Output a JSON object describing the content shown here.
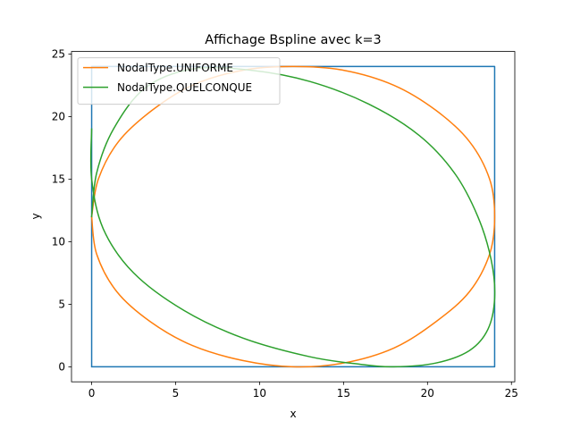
{
  "chart_data": {
    "type": "line",
    "title": "Affichage Bspline avec k=3",
    "xlabel": "x",
    "ylabel": "y",
    "xlim": [
      -1.2,
      25.2
    ],
    "ylim": [
      -1.2,
      25.2
    ],
    "xticks": [
      0,
      5,
      10,
      15,
      20,
      25
    ],
    "yticks": [
      0,
      5,
      10,
      15,
      20,
      25
    ],
    "xtick_labels": [
      "0",
      "5",
      "10",
      "15",
      "20",
      "25"
    ],
    "ytick_labels": [
      "0",
      "5",
      "10",
      "15",
      "20",
      "25"
    ],
    "grid": false,
    "legend_position": "upper-left",
    "series": [
      {
        "name": "",
        "color": "#1f77b4",
        "in_legend": false,
        "points": [
          [
            0,
            0
          ],
          [
            24,
            0
          ],
          [
            24,
            24
          ],
          [
            0,
            24
          ],
          [
            0,
            0
          ]
        ]
      },
      {
        "name": "NodalType.UNIFORME",
        "color": "#ff7f0e",
        "in_legend": true,
        "points": [
          [
            0.0,
            12.0
          ],
          [
            0.3,
            9.0
          ],
          [
            1.5,
            6.0
          ],
          [
            3.5,
            3.6
          ],
          [
            6.0,
            1.7
          ],
          [
            9.0,
            0.5
          ],
          [
            12.0,
            0.0
          ],
          [
            15.0,
            0.3
          ],
          [
            18.0,
            1.5
          ],
          [
            20.5,
            3.6
          ],
          [
            22.5,
            6.0
          ],
          [
            23.7,
            9.0
          ],
          [
            24.0,
            12.0
          ],
          [
            23.7,
            15.0
          ],
          [
            22.5,
            18.0
          ],
          [
            20.5,
            20.5
          ],
          [
            18.0,
            22.5
          ],
          [
            15.0,
            23.7
          ],
          [
            12.0,
            24.0
          ],
          [
            9.0,
            23.7
          ],
          [
            6.0,
            22.5
          ],
          [
            3.6,
            20.5
          ],
          [
            1.6,
            18.0
          ],
          [
            0.4,
            15.0
          ],
          [
            0.0,
            12.0
          ]
        ]
      },
      {
        "name": "NodalType.QUELCONQUE",
        "color": "#2ca02c",
        "in_legend": true,
        "points": [
          [
            0.0,
            19.0
          ],
          [
            0.0,
            15.0
          ],
          [
            0.7,
            11.0
          ],
          [
            2.5,
            7.5
          ],
          [
            5.5,
            4.5
          ],
          [
            9.0,
            2.3
          ],
          [
            13.0,
            0.8
          ],
          [
            16.0,
            0.2
          ],
          [
            18.0,
            0.0
          ],
          [
            20.5,
            0.3
          ],
          [
            22.5,
            1.3
          ],
          [
            23.6,
            3.0
          ],
          [
            24.0,
            5.5
          ],
          [
            23.8,
            8.5
          ],
          [
            23.0,
            12.0
          ],
          [
            21.6,
            15.5
          ],
          [
            19.5,
            18.5
          ],
          [
            16.5,
            21.0
          ],
          [
            13.0,
            22.8
          ],
          [
            9.5,
            23.7
          ],
          [
            6.0,
            23.8
          ],
          [
            3.2,
            22.3
          ],
          [
            1.3,
            19.0
          ],
          [
            0.3,
            15.5
          ],
          [
            0.0,
            12.0
          ]
        ]
      }
    ]
  }
}
